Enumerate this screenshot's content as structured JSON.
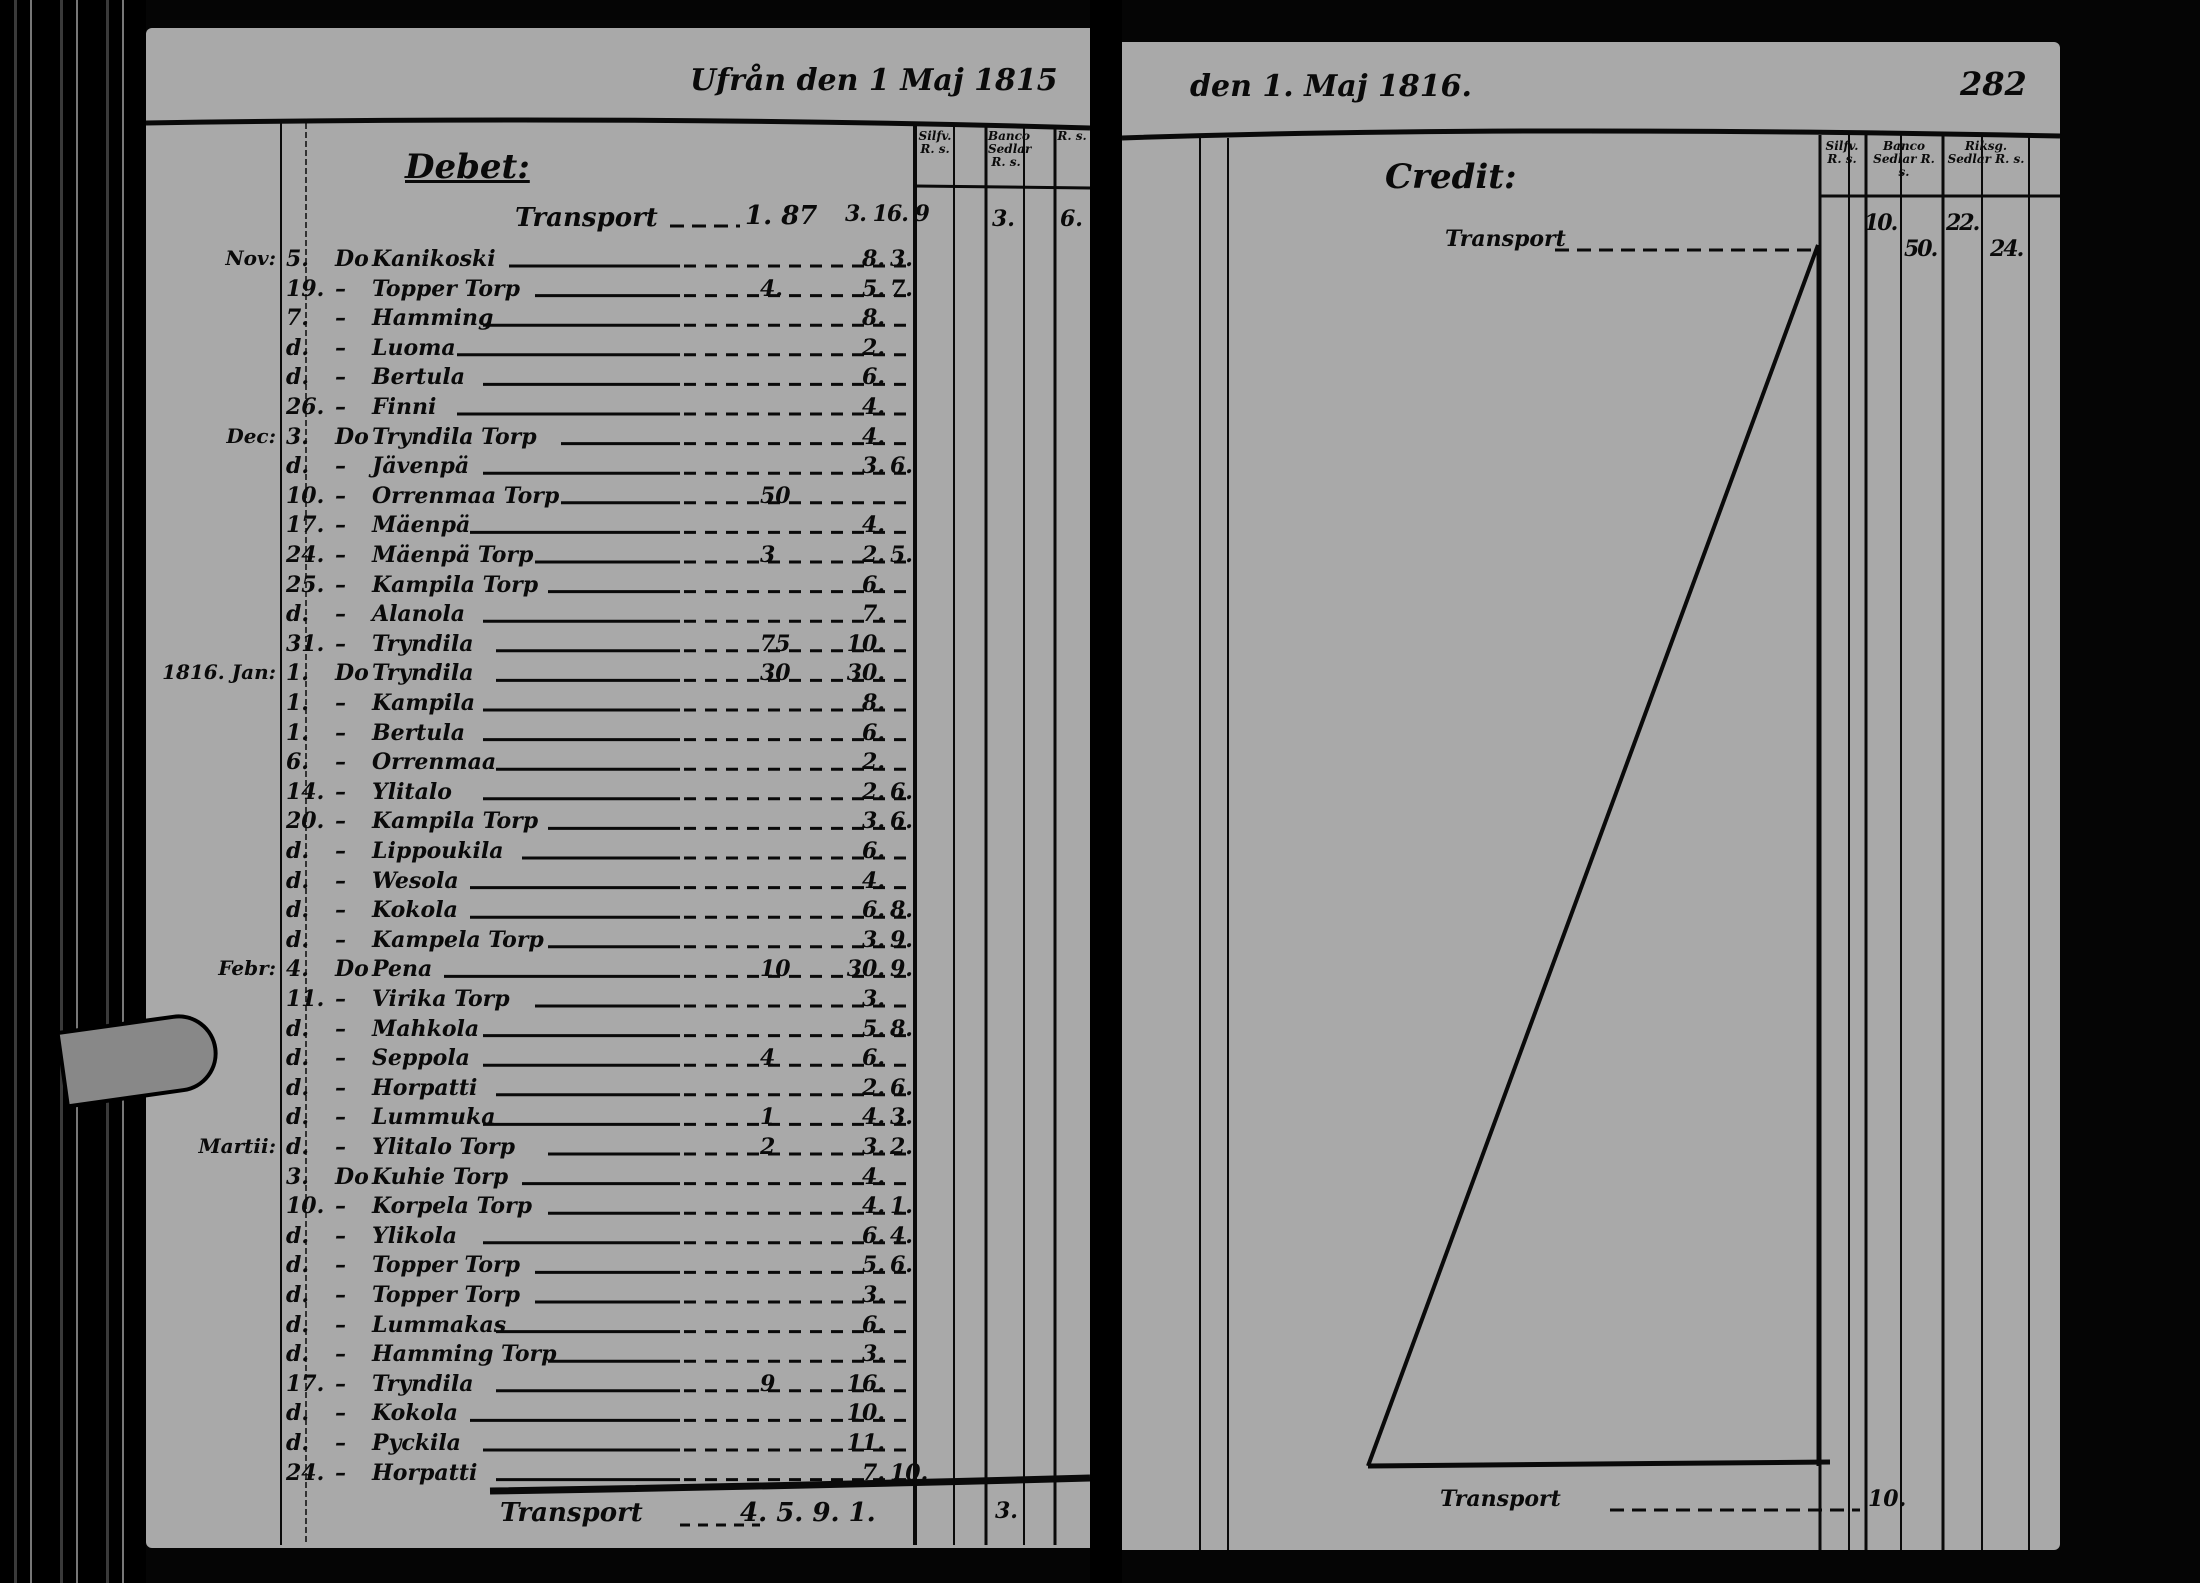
{
  "left_page": {
    "heading": "Ufrån den 1 Maj 1815",
    "section_label": "Debet:",
    "column_headers": [
      "Silfv. R. s.",
      "Banco Sedlar R. s.",
      "R. s."
    ],
    "transport_top": {
      "label": "Transport",
      "amount_a": "1. 87",
      "amount_b": "3. 16. 9",
      "amount_c": "3.",
      "amount_d": "6."
    },
    "entries": [
      {
        "month": "Nov:",
        "day": "5.",
        "ditto": "Do",
        "name": "Kanikoski",
        "extra": "",
        "rd": "8.",
        "sk": "3."
      },
      {
        "month": "",
        "day": "19.",
        "ditto": "–",
        "name": "Topper Torp",
        "extra": "4.",
        "rd": "5.",
        "sk": "7."
      },
      {
        "month": "",
        "day": "7.",
        "ditto": "–",
        "name": "Hamming",
        "extra": "",
        "rd": "8.",
        "sk": ""
      },
      {
        "month": "",
        "day": "d.",
        "ditto": "–",
        "name": "Luoma",
        "extra": "",
        "rd": "2.",
        "sk": ""
      },
      {
        "month": "",
        "day": "d.",
        "ditto": "–",
        "name": "Bertula",
        "extra": "",
        "rd": "6.",
        "sk": ""
      },
      {
        "month": "",
        "day": "26.",
        "ditto": "–",
        "name": "Finni",
        "extra": "",
        "rd": "4.",
        "sk": ""
      },
      {
        "month": "Dec:",
        "day": "3.",
        "ditto": "Do",
        "name": "Tryndila Torp",
        "extra": "",
        "rd": "4.",
        "sk": ""
      },
      {
        "month": "",
        "day": "d.",
        "ditto": "–",
        "name": "Jävenpä",
        "extra": "",
        "rd": "3.",
        "sk": "6."
      },
      {
        "month": "",
        "day": "10.",
        "ditto": "–",
        "name": "Orrenmaa Torp",
        "extra": "50",
        "rd": "",
        "sk": ""
      },
      {
        "month": "",
        "day": "17.",
        "ditto": "–",
        "name": "Mäenpä",
        "extra": "",
        "rd": "4.",
        "sk": ""
      },
      {
        "month": "",
        "day": "24.",
        "ditto": "–",
        "name": "Mäenpä Torp",
        "extra": "3",
        "rd": "2.",
        "sk": "5."
      },
      {
        "month": "",
        "day": "25.",
        "ditto": "–",
        "name": "Kampila Torp",
        "extra": "",
        "rd": "6.",
        "sk": ""
      },
      {
        "month": "",
        "day": "d.",
        "ditto": "–",
        "name": "Alanola",
        "extra": "",
        "rd": "7.",
        "sk": ""
      },
      {
        "month": "",
        "day": "31.",
        "ditto": "–",
        "name": "Tryndila",
        "extra": "75",
        "rd": "10.",
        "sk": ""
      },
      {
        "month": "1816. Jan:",
        "day": "1.",
        "ditto": "Do",
        "name": "Tryndila",
        "extra": "30",
        "rd": "30.",
        "sk": ""
      },
      {
        "month": "",
        "day": "1.",
        "ditto": "–",
        "name": "Kampila",
        "extra": "",
        "rd": "8.",
        "sk": ""
      },
      {
        "month": "",
        "day": "1.",
        "ditto": "–",
        "name": "Bertula",
        "extra": "",
        "rd": "6.",
        "sk": ""
      },
      {
        "month": "",
        "day": "6.",
        "ditto": "–",
        "name": "Orrenmaa",
        "extra": "",
        "rd": "2.",
        "sk": ""
      },
      {
        "month": "",
        "day": "14.",
        "ditto": "–",
        "name": "Ylitalo",
        "extra": "",
        "rd": "2.",
        "sk": "6."
      },
      {
        "month": "",
        "day": "20.",
        "ditto": "–",
        "name": "Kampila Torp",
        "extra": "",
        "rd": "3.",
        "sk": "6."
      },
      {
        "month": "",
        "day": "d.",
        "ditto": "–",
        "name": "Lippoukila",
        "extra": "",
        "rd": "6.",
        "sk": ""
      },
      {
        "month": "",
        "day": "d.",
        "ditto": "–",
        "name": "Wesola",
        "extra": "",
        "rd": "4.",
        "sk": ""
      },
      {
        "month": "",
        "day": "d.",
        "ditto": "–",
        "name": "Kokola",
        "extra": "",
        "rd": "6.",
        "sk": "8."
      },
      {
        "month": "",
        "day": "d.",
        "ditto": "–",
        "name": "Kampela Torp",
        "extra": "",
        "rd": "3.",
        "sk": "9."
      },
      {
        "month": "Febr:",
        "day": "4.",
        "ditto": "Do",
        "name": "Pena",
        "extra": "10",
        "rd": "30.",
        "sk": "9."
      },
      {
        "month": "",
        "day": "11.",
        "ditto": "–",
        "name": "Virika Torp",
        "extra": "",
        "rd": "3.",
        "sk": ""
      },
      {
        "month": "",
        "day": "d.",
        "ditto": "–",
        "name": "Mahkola",
        "extra": "",
        "rd": "5.",
        "sk": "8."
      },
      {
        "month": "",
        "day": "d.",
        "ditto": "–",
        "name": "Seppola",
        "extra": "4",
        "rd": "6.",
        "sk": ""
      },
      {
        "month": "",
        "day": "d.",
        "ditto": "–",
        "name": "Horpatti",
        "extra": "",
        "rd": "2.",
        "sk": "6."
      },
      {
        "month": "",
        "day": "d.",
        "ditto": "–",
        "name": "Lummuka",
        "extra": "1",
        "rd": "4.",
        "sk": "3."
      },
      {
        "month": "Martii:",
        "day": "d.",
        "ditto": "–",
        "name": "Ylitalo Torp",
        "extra": "2",
        "rd": "3.",
        "sk": "2."
      },
      {
        "month": "",
        "day": "3.",
        "ditto": "Do",
        "name": "Kuhie Torp",
        "extra": "",
        "rd": "4.",
        "sk": ""
      },
      {
        "month": "",
        "day": "10.",
        "ditto": "–",
        "name": "Korpela Torp",
        "extra": "",
        "rd": "4.",
        "sk": "1."
      },
      {
        "month": "",
        "day": "d.",
        "ditto": "–",
        "name": "Ylikola",
        "extra": "",
        "rd": "6.",
        "sk": "4."
      },
      {
        "month": "",
        "day": "d.",
        "ditto": "–",
        "name": "Topper Torp",
        "extra": "",
        "rd": "5.",
        "sk": "6."
      },
      {
        "month": "",
        "day": "d.",
        "ditto": "–",
        "name": "Topper Torp",
        "extra": "",
        "rd": "3.",
        "sk": ""
      },
      {
        "month": "",
        "day": "d.",
        "ditto": "–",
        "name": "Lummakas",
        "extra": "",
        "rd": "6.",
        "sk": ""
      },
      {
        "month": "",
        "day": "d.",
        "ditto": "–",
        "name": "Hamming Torp",
        "extra": "",
        "rd": "3.",
        "sk": ""
      },
      {
        "month": "",
        "day": "17.",
        "ditto": "–",
        "name": "Tryndila",
        "extra": "9",
        "rd": "16.",
        "sk": ""
      },
      {
        "month": "",
        "day": "d.",
        "ditto": "–",
        "name": "Kokola",
        "extra": "",
        "rd": "10.",
        "sk": ""
      },
      {
        "month": "",
        "day": "d.",
        "ditto": "–",
        "name": "Pyckila",
        "extra": "",
        "rd": "11.",
        "sk": ""
      },
      {
        "month": "",
        "day": "24.",
        "ditto": "–",
        "name": "Horpatti",
        "extra": "",
        "rd": "7.",
        "sk": "10."
      }
    ],
    "transport_bottom": {
      "label": "Transport",
      "amount_a": "4. 5. 9. 1.",
      "amount_c": "3."
    }
  },
  "right_page": {
    "heading": "den 1. Maj 1816.",
    "page_number": "282",
    "section_label": "Credit:",
    "column_headers": [
      "Silfv. R. s.",
      "Banco Sedlar R. s.",
      "Riksg. Sedlar R. s."
    ],
    "transport_top": {
      "label": "Transport",
      "values": [
        "10.",
        "50.",
        "22.",
        "24."
      ]
    },
    "transport_bottom": {
      "label": "Transport",
      "values": [
        "10."
      ]
    }
  }
}
